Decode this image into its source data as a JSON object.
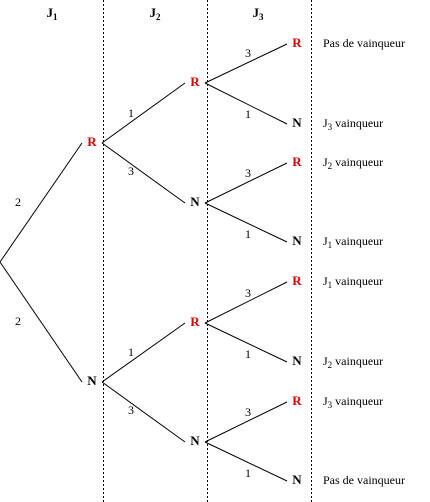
{
  "headers": [
    {
      "letter": "J",
      "sub": "1"
    },
    {
      "letter": "J",
      "sub": "2"
    },
    {
      "letter": "J",
      "sub": "3"
    }
  ],
  "levels": [
    {
      "nodes": [
        "R",
        "N"
      ],
      "weights": [
        2,
        2
      ]
    },
    {
      "nodes": [
        "R",
        "N",
        "R",
        "N"
      ],
      "weights": [
        1,
        3,
        1,
        3
      ]
    },
    {
      "nodes": [
        "R",
        "N",
        "R",
        "N",
        "R",
        "N",
        "R",
        "N"
      ],
      "weights": [
        3,
        1,
        3,
        1,
        3,
        1,
        3,
        1
      ]
    }
  ],
  "outcomes": [
    {
      "text": "Pas de vainqueur"
    },
    {
      "prefix": "J",
      "sub": "3",
      "text": " vainqueur"
    },
    {
      "prefix": "J",
      "sub": "2",
      "text": " vainqueur"
    },
    {
      "prefix": "J",
      "sub": "1",
      "text": " vainqueur"
    },
    {
      "prefix": "J",
      "sub": "1",
      "text": " vainqueur"
    },
    {
      "prefix": "J",
      "sub": "2",
      "text": " vainqueur"
    },
    {
      "prefix": "J",
      "sub": "3",
      "text": " vainqueur"
    },
    {
      "text": "Pas de vainqueur"
    }
  ]
}
